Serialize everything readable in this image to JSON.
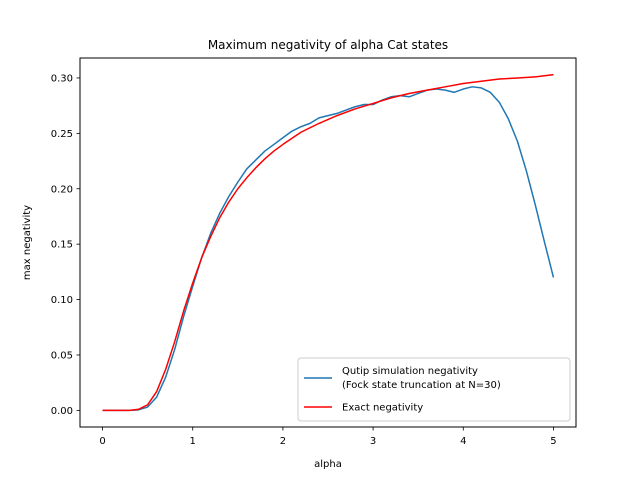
{
  "chart_data": {
    "type": "line",
    "title": "Maximum negativity of alpha Cat states",
    "xlabel": "alpha",
    "ylabel": "max negativity",
    "xlim": [
      -0.25,
      5.25
    ],
    "ylim": [
      -0.015,
      0.318
    ],
    "xticks": [
      0,
      1,
      2,
      3,
      4,
      5
    ],
    "xtick_labels": [
      "0",
      "1",
      "2",
      "3",
      "4",
      "5"
    ],
    "yticks": [
      0.0,
      0.05,
      0.1,
      0.15,
      0.2,
      0.25,
      0.3
    ],
    "ytick_labels": [
      "0.00",
      "0.05",
      "0.10",
      "0.15",
      "0.20",
      "0.25",
      "0.30"
    ],
    "grid": false,
    "legend_position": "lower-right",
    "series": [
      {
        "name": "Qutip simulation negativity\n(Fock state truncation at N=30)",
        "color": "#1f77b4",
        "x": [
          0,
          0.1,
          0.2,
          0.3,
          0.4,
          0.5,
          0.6,
          0.7,
          0.8,
          0.9,
          1.0,
          1.1,
          1.2,
          1.3,
          1.4,
          1.5,
          1.6,
          1.7,
          1.8,
          1.9,
          2.0,
          2.1,
          2.2,
          2.3,
          2.4,
          2.5,
          2.6,
          2.7,
          2.8,
          2.9,
          3.0,
          3.1,
          3.2,
          3.3,
          3.4,
          3.5,
          3.6,
          3.7,
          3.8,
          3.9,
          4.0,
          4.1,
          4.2,
          4.3,
          4.4,
          4.5,
          4.6,
          4.7,
          4.8,
          4.9,
          5.0
        ],
        "y": [
          0.0,
          0.0,
          0.0,
          0.0,
          0.0005,
          0.003,
          0.012,
          0.03,
          0.055,
          0.085,
          0.112,
          0.138,
          0.16,
          0.178,
          0.193,
          0.206,
          0.218,
          0.226,
          0.234,
          0.24,
          0.246,
          0.252,
          0.256,
          0.259,
          0.264,
          0.266,
          0.268,
          0.271,
          0.274,
          0.276,
          0.276,
          0.28,
          0.283,
          0.284,
          0.283,
          0.286,
          0.289,
          0.29,
          0.289,
          0.287,
          0.29,
          0.292,
          0.291,
          0.287,
          0.278,
          0.263,
          0.243,
          0.216,
          0.185,
          0.152,
          0.12
        ]
      },
      {
        "name": "Exact negativity",
        "color": "#ff0000",
        "x": [
          0,
          0.1,
          0.2,
          0.3,
          0.4,
          0.5,
          0.6,
          0.7,
          0.8,
          0.9,
          1.0,
          1.1,
          1.2,
          1.3,
          1.4,
          1.5,
          1.6,
          1.7,
          1.8,
          1.9,
          2.0,
          2.2,
          2.4,
          2.6,
          2.8,
          3.0,
          3.2,
          3.4,
          3.6,
          3.8,
          4.0,
          4.2,
          4.4,
          4.6,
          4.8,
          5.0
        ],
        "y": [
          0.0,
          0.0,
          0.0,
          0.0,
          0.001,
          0.005,
          0.017,
          0.037,
          0.062,
          0.09,
          0.115,
          0.138,
          0.157,
          0.174,
          0.188,
          0.2,
          0.21,
          0.219,
          0.227,
          0.234,
          0.24,
          0.251,
          0.259,
          0.266,
          0.272,
          0.277,
          0.282,
          0.286,
          0.289,
          0.292,
          0.295,
          0.297,
          0.299,
          0.3,
          0.301,
          0.303
        ]
      }
    ]
  }
}
